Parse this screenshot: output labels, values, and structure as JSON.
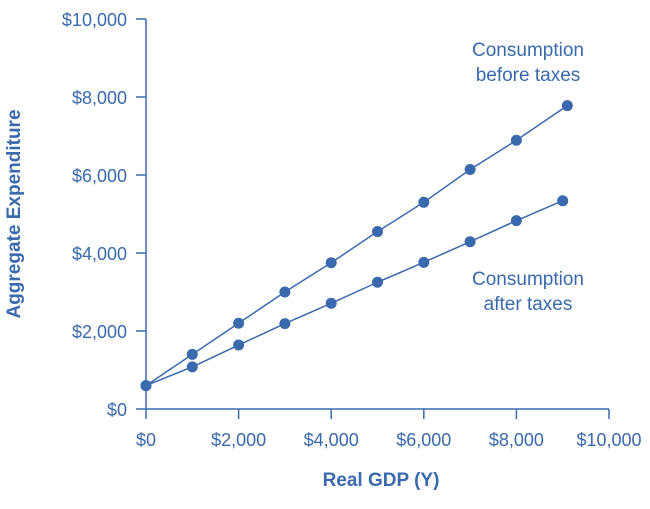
{
  "chart_data": {
    "type": "line",
    "title": "",
    "xlabel": "Real GDP (Y)",
    "ylabel": "Aggregate Expenditure",
    "xlim": [
      0,
      10000
    ],
    "ylim": [
      0,
      10000
    ],
    "x_ticks": [
      "$0",
      "$2,000",
      "$4,000",
      "$6,000",
      "$8,000",
      "$10,000"
    ],
    "x_tick_values": [
      0,
      2000,
      4000,
      6000,
      8000,
      10000
    ],
    "y_ticks": [
      "$0",
      "$2,000",
      "$4,000",
      "$6,000",
      "$8,000",
      "$10,000"
    ],
    "y_tick_values": [
      0,
      2000,
      4000,
      6000,
      8000,
      10000
    ],
    "grid": false,
    "color": "#3a6aad",
    "series": [
      {
        "name": "Consumption before taxes",
        "label_lines": [
          "Consumption",
          "before taxes"
        ],
        "x": [
          0,
          1000,
          2000,
          3000,
          4000,
          5000,
          6000,
          7000,
          8000,
          9100
        ],
        "y": [
          600,
          1400,
          2200,
          3000,
          3750,
          4550,
          5300,
          6140,
          6890,
          7780
        ]
      },
      {
        "name": "Consumption after taxes",
        "label_lines": [
          "Consumption",
          "after taxes"
        ],
        "x": [
          0,
          1000,
          2000,
          3000,
          4000,
          5000,
          6000,
          7000,
          8000,
          9000
        ],
        "y": [
          600,
          1080,
          1640,
          2190,
          2710,
          3250,
          3760,
          4290,
          4830,
          5340
        ]
      }
    ]
  }
}
